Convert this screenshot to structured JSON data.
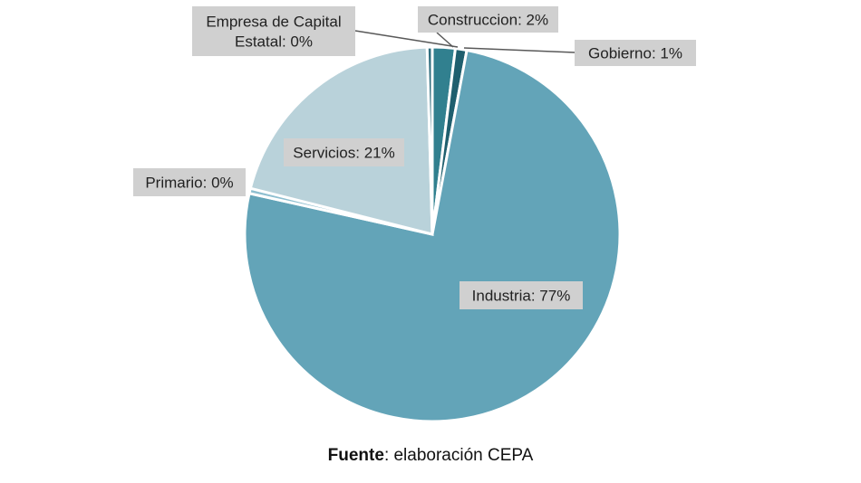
{
  "chart_data": {
    "type": "pie",
    "categories": [
      "Construccion",
      "Gobierno",
      "Industria",
      "Primario",
      "Servicios",
      "Empresa de Capital Estatal"
    ],
    "values": [
      2,
      1,
      77,
      0,
      21,
      0
    ],
    "labels": [
      "Construccion: 2%",
      "Gobierno: 1%",
      "Industria: 77%",
      "Primario: 0%",
      "Servicios: 21%",
      [
        "Empresa de Capital",
        "Estatal: 0%"
      ]
    ],
    "colors": [
      "#31808f",
      "#1f5f6e",
      "#63a4b8",
      "#8ebfd0",
      "#b9d2da",
      "#2f6e7e"
    ],
    "start_angle_deg": 0,
    "direction": "clockwise",
    "label_box_color": "#d0d0d0",
    "leader_line_color": "#595959"
  },
  "source": {
    "prefix": "Fuente",
    "text": ": elaboración CEPA"
  }
}
